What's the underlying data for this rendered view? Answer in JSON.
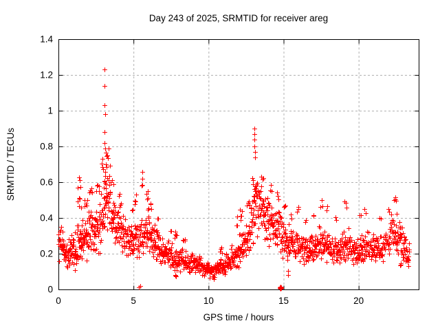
{
  "page": {
    "background": "#ffffff"
  },
  "chart_data": {
    "type": "scatter",
    "title": "Day 243 of 2025, SRMTID for receiver areg",
    "xlabel": "GPS time / hours",
    "ylabel": "SRMTID / TECUs",
    "xlim": [
      0,
      24
    ],
    "ylim": [
      0,
      1.4
    ],
    "xticks": [
      0,
      5,
      10,
      15,
      20
    ],
    "yticks": [
      0,
      0.2,
      0.4,
      0.6,
      0.8,
      1,
      1.2,
      1.4
    ],
    "grid": true,
    "legend": "none",
    "marker": "plus",
    "marker_color": "#ff0000",
    "grid_color": "#b0b0b0",
    "frame_color": "#000000",
    "x_data_range": [
      0.0,
      23.4
    ],
    "peaks": [
      {
        "x": 3.08,
        "y": 1.23,
        "note": "main TID peak"
      },
      {
        "x": 13.05,
        "y": 0.9,
        "note": "secondary TID peak"
      }
    ],
    "density_profile": {
      "description": "Dense noisy scatter approximated by bands; columns are [x_start_h, x_end_h, y_min_TECU, y_max_TECU, n_points]",
      "columns": [
        "x_start",
        "x_end",
        "y_min",
        "y_max",
        "n_points"
      ],
      "bands": [
        [
          0.0,
          0.35,
          0.13,
          0.37,
          26
        ],
        [
          0.35,
          0.8,
          0.1,
          0.3,
          34
        ],
        [
          0.8,
          1.2,
          0.1,
          0.33,
          30
        ],
        [
          1.2,
          1.6,
          0.13,
          0.4,
          30
        ],
        [
          1.6,
          2.0,
          0.15,
          0.42,
          30
        ],
        [
          2.0,
          2.4,
          0.15,
          0.45,
          30
        ],
        [
          2.4,
          2.8,
          0.18,
          0.5,
          30
        ],
        [
          2.8,
          3.0,
          0.22,
          0.58,
          16
        ],
        [
          3.0,
          3.2,
          0.32,
          0.78,
          22
        ],
        [
          3.2,
          3.5,
          0.3,
          0.72,
          24
        ],
        [
          3.5,
          3.8,
          0.24,
          0.58,
          22
        ],
        [
          3.8,
          4.2,
          0.2,
          0.5,
          28
        ],
        [
          4.2,
          4.6,
          0.17,
          0.43,
          28
        ],
        [
          4.6,
          5.0,
          0.15,
          0.38,
          28
        ],
        [
          5.0,
          5.35,
          0.15,
          0.4,
          22
        ],
        [
          5.35,
          5.65,
          0.16,
          0.42,
          20
        ],
        [
          5.65,
          6.05,
          0.18,
          0.47,
          28
        ],
        [
          6.05,
          6.45,
          0.15,
          0.4,
          28
        ],
        [
          6.45,
          6.85,
          0.13,
          0.35,
          28
        ],
        [
          6.85,
          7.25,
          0.12,
          0.3,
          28
        ],
        [
          7.25,
          7.65,
          0.1,
          0.28,
          28
        ],
        [
          7.65,
          8.0,
          0.07,
          0.26,
          26
        ],
        [
          8.0,
          8.5,
          0.09,
          0.24,
          32
        ],
        [
          8.5,
          9.0,
          0.08,
          0.22,
          32
        ],
        [
          9.0,
          9.5,
          0.08,
          0.2,
          32
        ],
        [
          9.5,
          10.0,
          0.06,
          0.17,
          32
        ],
        [
          10.0,
          10.5,
          0.05,
          0.15,
          32
        ],
        [
          10.5,
          11.0,
          0.07,
          0.19,
          32
        ],
        [
          11.0,
          11.5,
          0.08,
          0.21,
          32
        ],
        [
          11.5,
          12.0,
          0.1,
          0.27,
          30
        ],
        [
          12.0,
          12.4,
          0.13,
          0.33,
          26
        ],
        [
          12.4,
          12.8,
          0.17,
          0.42,
          26
        ],
        [
          12.8,
          13.0,
          0.2,
          0.52,
          14
        ],
        [
          13.0,
          13.2,
          0.32,
          0.72,
          20
        ],
        [
          13.2,
          13.55,
          0.28,
          0.66,
          26
        ],
        [
          13.55,
          13.95,
          0.25,
          0.56,
          28
        ],
        [
          13.95,
          14.35,
          0.22,
          0.5,
          28
        ],
        [
          14.35,
          14.75,
          0.2,
          0.46,
          28
        ],
        [
          14.75,
          15.0,
          0.17,
          0.42,
          16
        ],
        [
          15.0,
          15.4,
          0.15,
          0.4,
          26
        ],
        [
          15.4,
          15.85,
          0.14,
          0.36,
          28
        ],
        [
          15.85,
          16.3,
          0.14,
          0.35,
          28
        ],
        [
          16.3,
          16.75,
          0.13,
          0.33,
          28
        ],
        [
          16.75,
          17.2,
          0.14,
          0.35,
          28
        ],
        [
          17.2,
          17.65,
          0.15,
          0.36,
          28
        ],
        [
          17.65,
          18.1,
          0.14,
          0.34,
          28
        ],
        [
          18.1,
          18.55,
          0.13,
          0.32,
          28
        ],
        [
          18.55,
          19.0,
          0.14,
          0.33,
          28
        ],
        [
          19.0,
          19.45,
          0.14,
          0.35,
          28
        ],
        [
          19.45,
          19.9,
          0.12,
          0.3,
          28
        ],
        [
          19.9,
          20.35,
          0.13,
          0.33,
          28
        ],
        [
          20.35,
          20.8,
          0.14,
          0.35,
          28
        ],
        [
          20.8,
          21.25,
          0.13,
          0.33,
          28
        ],
        [
          21.25,
          21.7,
          0.12,
          0.32,
          28
        ],
        [
          21.7,
          22.1,
          0.16,
          0.38,
          26
        ],
        [
          22.1,
          22.55,
          0.2,
          0.45,
          28
        ],
        [
          22.55,
          22.95,
          0.17,
          0.4,
          26
        ],
        [
          22.95,
          23.2,
          0.14,
          0.33,
          16
        ],
        [
          23.2,
          23.38,
          0.1,
          0.27,
          12
        ]
      ],
      "spikes": [
        [
          1.25,
          1.5,
          0.42,
          0.6,
          7
        ],
        [
          1.38,
          1.44,
          0.58,
          0.64,
          2
        ],
        [
          1.7,
          1.95,
          0.44,
          0.56,
          5
        ],
        [
          2.05,
          2.25,
          0.48,
          0.62,
          5
        ],
        [
          2.5,
          2.75,
          0.5,
          0.64,
          5
        ],
        [
          2.85,
          3.0,
          0.58,
          0.75,
          4
        ],
        [
          3.15,
          3.35,
          0.7,
          0.8,
          5
        ],
        [
          3.55,
          3.7,
          0.55,
          0.65,
          3
        ],
        [
          4.0,
          4.1,
          0.5,
          0.56,
          2
        ],
        [
          4.85,
          4.95,
          0.42,
          0.47,
          2
        ],
        [
          5.05,
          5.2,
          0.45,
          0.62,
          4
        ],
        [
          5.55,
          5.62,
          0.5,
          0.68,
          4
        ],
        [
          5.85,
          6.0,
          0.48,
          0.6,
          4
        ],
        [
          6.1,
          6.2,
          0.42,
          0.52,
          3
        ],
        [
          6.55,
          6.65,
          0.37,
          0.42,
          2
        ],
        [
          7.45,
          7.55,
          0.3,
          0.34,
          2
        ],
        [
          7.72,
          7.88,
          0.27,
          0.34,
          5
        ],
        [
          7.78,
          7.85,
          0.05,
          0.08,
          2
        ],
        [
          8.3,
          8.45,
          0.25,
          0.3,
          4
        ],
        [
          10.7,
          10.95,
          0.19,
          0.25,
          4
        ],
        [
          11.85,
          11.95,
          0.3,
          0.45,
          3
        ],
        [
          12.05,
          12.25,
          0.35,
          0.47,
          5
        ],
        [
          12.55,
          12.75,
          0.44,
          0.55,
          4
        ],
        [
          12.9,
          13.0,
          0.55,
          0.65,
          3
        ],
        [
          13.5,
          13.65,
          0.58,
          0.66,
          3
        ],
        [
          14.1,
          14.2,
          0.52,
          0.6,
          3
        ],
        [
          14.55,
          14.68,
          0.5,
          0.58,
          3
        ],
        [
          15.0,
          15.12,
          0.42,
          0.5,
          3
        ],
        [
          15.45,
          15.55,
          0.38,
          0.44,
          2
        ],
        [
          15.88,
          16.02,
          0.4,
          0.47,
          3
        ],
        [
          16.45,
          16.55,
          0.36,
          0.4,
          2
        ],
        [
          16.95,
          17.05,
          0.4,
          0.45,
          2
        ],
        [
          17.45,
          17.6,
          0.44,
          0.52,
          3
        ],
        [
          17.85,
          17.95,
          0.42,
          0.48,
          2
        ],
        [
          18.45,
          18.55,
          0.37,
          0.42,
          2
        ],
        [
          19.05,
          19.25,
          0.44,
          0.52,
          3
        ],
        [
          20.05,
          20.15,
          0.38,
          0.42,
          2
        ],
        [
          20.35,
          20.5,
          0.42,
          0.46,
          2
        ],
        [
          21.35,
          21.5,
          0.37,
          0.42,
          2
        ],
        [
          21.95,
          22.05,
          0.42,
          0.46,
          2
        ],
        [
          22.3,
          22.55,
          0.46,
          0.53,
          4
        ],
        [
          22.75,
          22.85,
          0.12,
          0.16,
          3
        ]
      ]
    },
    "outlier_points": [
      [
        3.08,
        1.23
      ],
      [
        3.09,
        1.14
      ],
      [
        3.08,
        1.03
      ],
      [
        3.1,
        0.98
      ],
      [
        3.09,
        0.88
      ],
      [
        3.07,
        0.82
      ],
      [
        3.1,
        0.79
      ],
      [
        13.05,
        0.9
      ],
      [
        13.06,
        0.87
      ],
      [
        13.04,
        0.84
      ],
      [
        13.07,
        0.8
      ],
      [
        13.08,
        0.77
      ],
      [
        13.1,
        0.74
      ]
    ],
    "near_zero_points": [
      [
        5.36,
        0.012
      ],
      [
        5.43,
        0.018
      ],
      [
        14.74,
        0.008
      ],
      [
        14.77,
        0.012
      ],
      [
        14.8,
        0.005
      ],
      [
        14.83,
        0.01
      ],
      [
        14.86,
        0.007
      ],
      [
        14.8,
        0.014
      ],
      [
        15.28,
        0.082
      ],
      [
        15.31,
        0.105
      ]
    ]
  }
}
